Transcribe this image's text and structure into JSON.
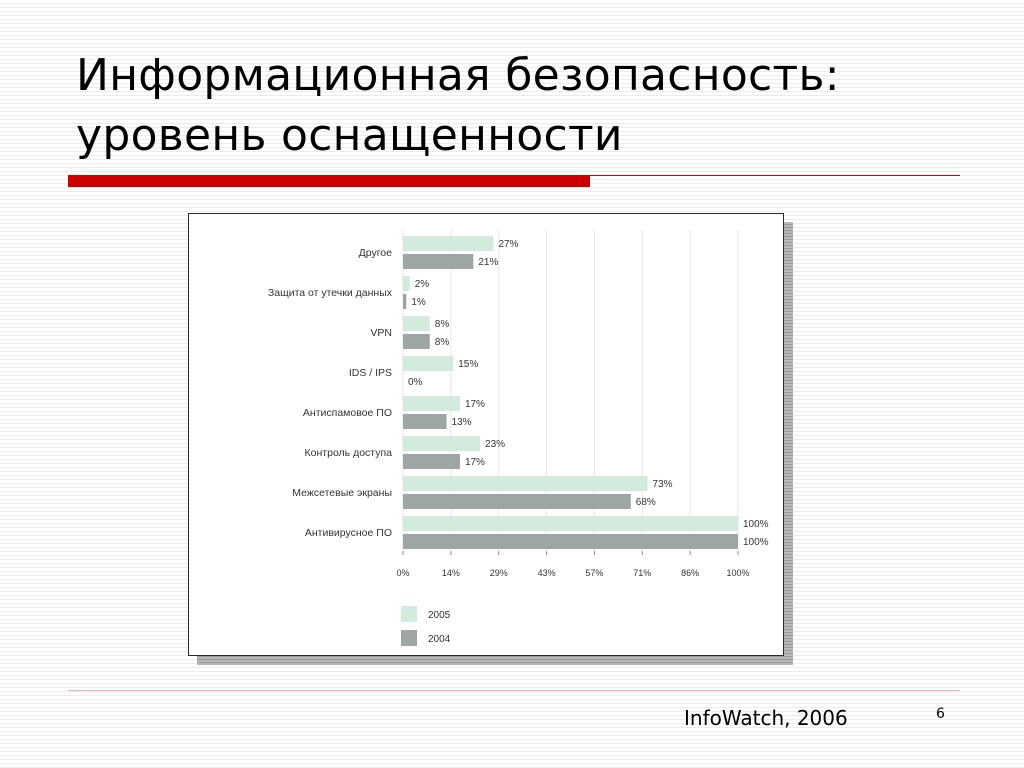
{
  "slide": {
    "title_line1": "Информационная безопасность:",
    "title_line2": "уровень оснащенности",
    "footer": "InfoWatch, 2006",
    "page_number": "6"
  },
  "colors": {
    "accent": "#cc0000",
    "series_2005": "#d3ebdc",
    "series_2004": "#9ea6a2"
  },
  "chart_data": {
    "type": "bar",
    "orientation": "horizontal",
    "categories": [
      "Другое",
      "Защита от утечки данных",
      "VPN",
      "IDS / IPS",
      "Антиспамовое ПО",
      "Контроль доступа",
      "Межсетевые экраны",
      "Антивирусное ПО"
    ],
    "series": [
      {
        "name": "2005",
        "values": [
          27,
          2,
          8,
          15,
          17,
          23,
          73,
          100
        ]
      },
      {
        "name": "2004",
        "values": [
          21,
          1,
          8,
          0,
          13,
          17,
          68,
          100
        ]
      }
    ],
    "value_suffix": "%",
    "x_ticks": [
      "0%",
      "14%",
      "29%",
      "43%",
      "57%",
      "71%",
      "86%",
      "100%"
    ],
    "xlim": [
      0,
      100
    ],
    "grid": true,
    "legend_position": "bottom-left"
  }
}
